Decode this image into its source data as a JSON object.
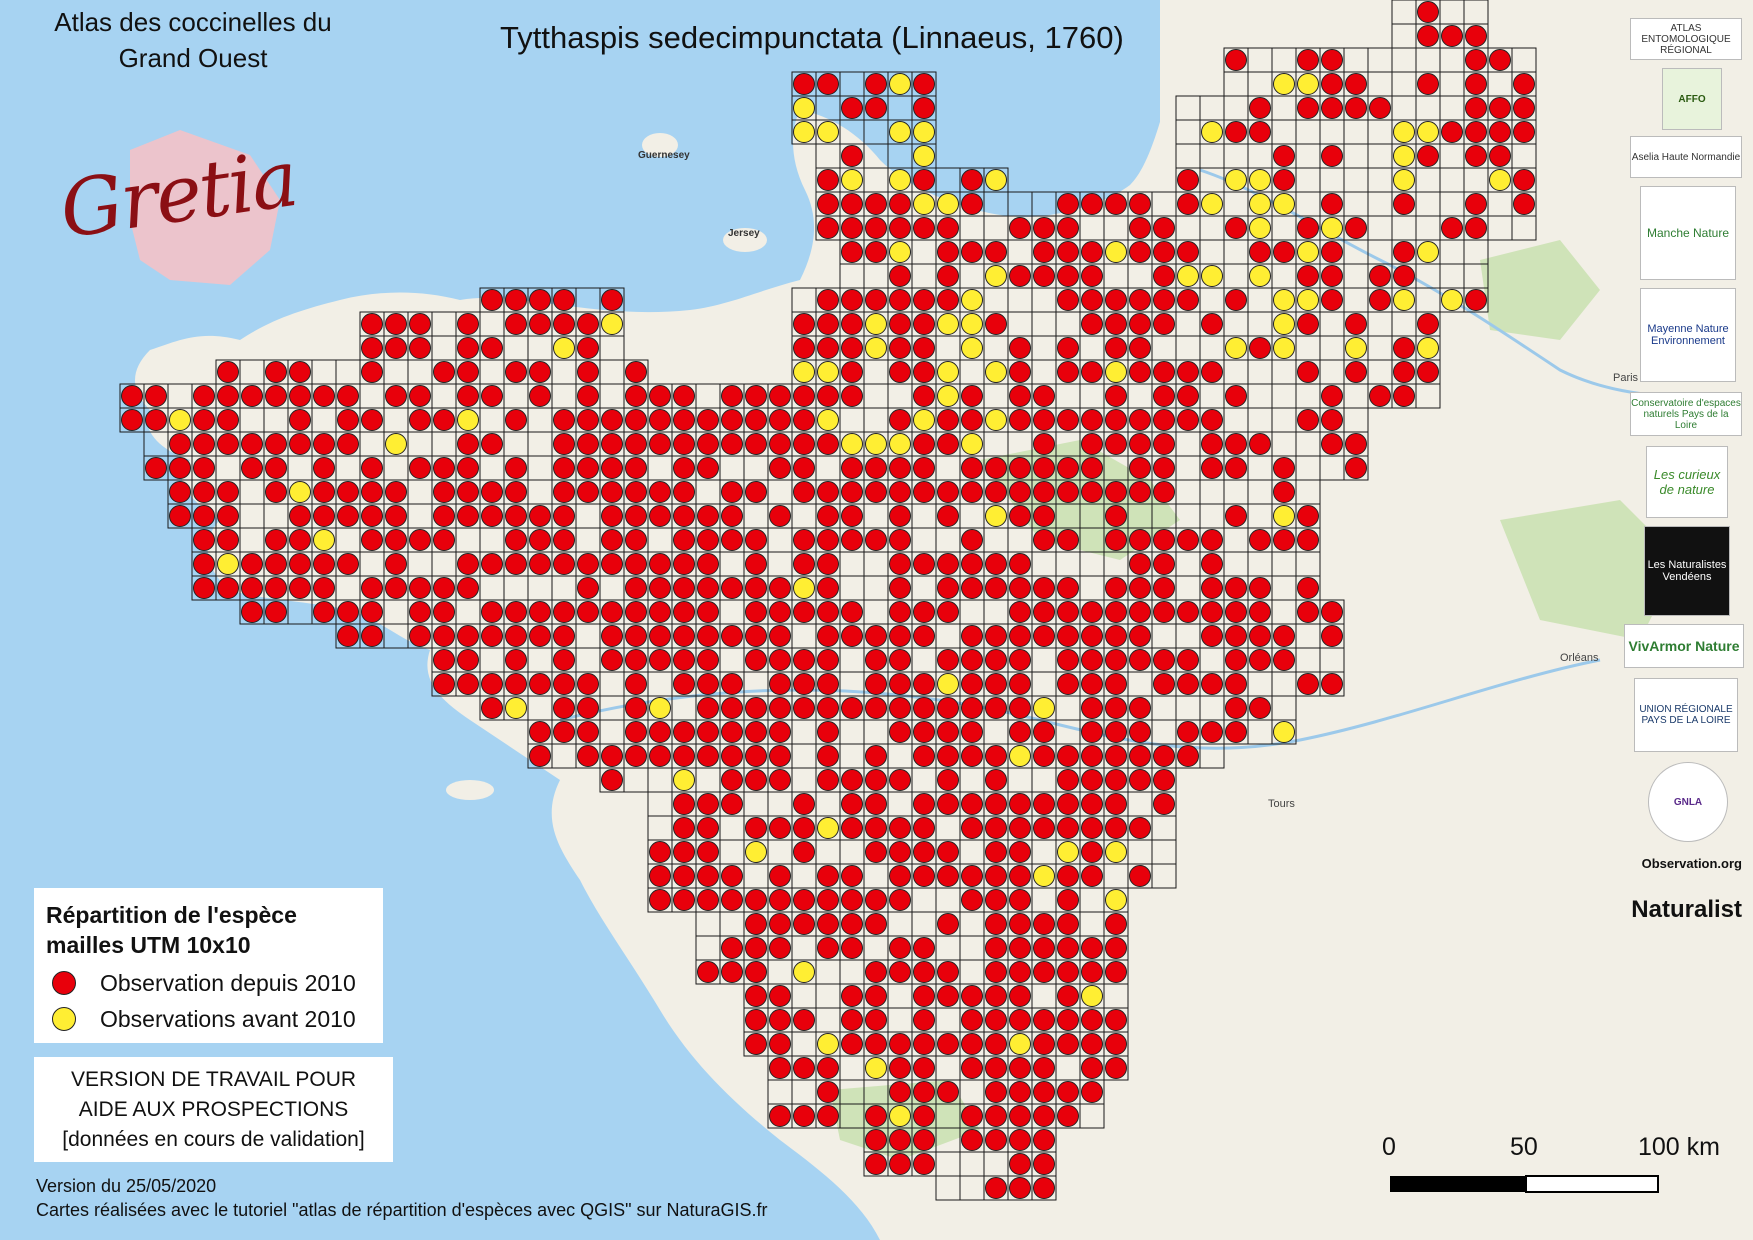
{
  "header": {
    "atlas_title_line1": "Atlas des coccinelles du",
    "atlas_title_line2": "Grand Ouest",
    "species_title": "Tytthaspis sedecimpunctata (Linnaeus, 1760)",
    "logo_text": "Gretia"
  },
  "legend": {
    "title_line1": "Répartition de l'espèce",
    "title_line2": "mailles UTM 10x10",
    "items": [
      {
        "label": "Observation depuis 2010",
        "color": "#e8000b"
      },
      {
        "label": "Observations avant 2010",
        "color": "#ffee33"
      }
    ]
  },
  "notice": {
    "line1": "VERSION DE TRAVAIL POUR",
    "line2": "AIDE AUX PROSPECTIONS",
    "line3": "[données en cours de validation]"
  },
  "footer": {
    "version": "Version du 25/05/2020",
    "credits": "Cartes réalisées avec le tutoriel \"atlas de répartition d'espèces avec QGIS\" sur NaturaGIS.fr"
  },
  "scale_bar": {
    "labels": [
      "0",
      "50",
      "100 km"
    ]
  },
  "place_labels": [
    {
      "name": "Guernesey"
    },
    {
      "name": "Jersey"
    },
    {
      "name": "Paris"
    },
    {
      "name": "Orléans"
    },
    {
      "name": "Tours"
    }
  ],
  "partners": [
    {
      "name": "ATLAS ENTOMOLOGIQUE RÉGIONAL"
    },
    {
      "name": "AFFO"
    },
    {
      "name": "Aselia Haute Normandie"
    },
    {
      "name": "Manche Nature"
    },
    {
      "name": "Mayenne Nature Environnement"
    },
    {
      "name": "Conservatoire d'espaces naturels Pays de la Loire"
    },
    {
      "name": "Les curieux de nature"
    },
    {
      "name": "Les Naturalistes Vendéens"
    },
    {
      "name": "VivArmor Nature"
    },
    {
      "name": "UNION RÉGIONALE PAYS DE LA LOIRE"
    },
    {
      "name": "GNLA"
    },
    {
      "name": "Observation.org"
    },
    {
      "name": "iNaturalist"
    }
  ],
  "map_data": {
    "grid_cell_km": 10,
    "colors": {
      "sea": "#a7d3f2",
      "land": "#f2efe6",
      "forest": "#cfe3b8",
      "recent": "#e8000b",
      "old": "#ffee33",
      "grid": "#1a1a1a"
    }
  }
}
